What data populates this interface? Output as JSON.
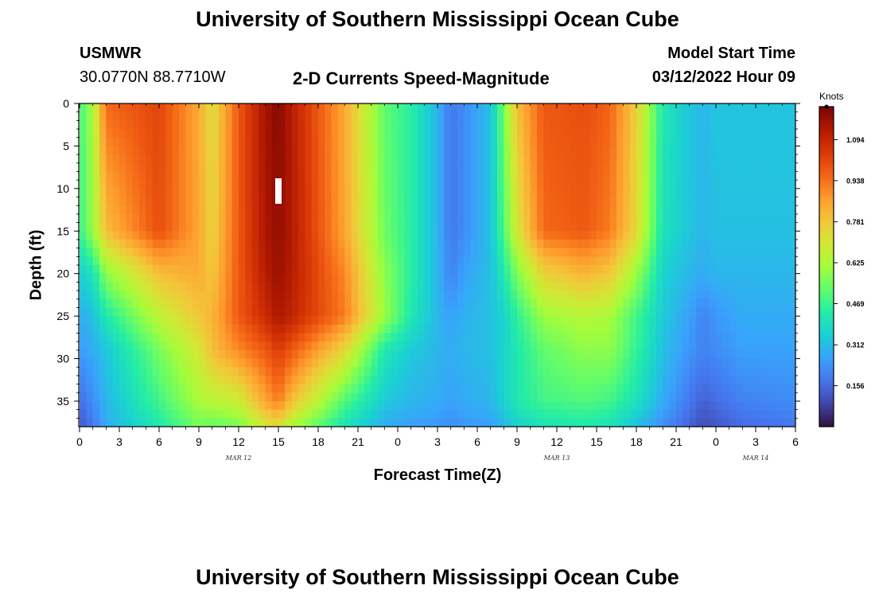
{
  "page": {
    "title": "University of Southern Mississippi Ocean Cube",
    "footer_title": "University of Southern Mississippi Ocean Cube",
    "station": "USMWR",
    "coords": "30.0770N  88.7710W",
    "model_start_label": "Model Start Time",
    "model_start_value": "03/12/2022 Hour 09"
  },
  "chart_data": {
    "type": "heatmap",
    "title": "2-D Currents Speed-Magnitude",
    "xlabel": "Forecast Time(Z)",
    "ylabel": "Depth (ft)",
    "colorbar_label": "Knots",
    "x_tick_labels": [
      "0",
      "3",
      "6",
      "9",
      "12",
      "15",
      "18",
      "21",
      "0",
      "3",
      "6",
      "9",
      "12",
      "15",
      "18",
      "21",
      "0",
      "3",
      "6"
    ],
    "x_range_hours": [
      0,
      54
    ],
    "date_labels": [
      {
        "text": "MAR 12",
        "hour": 12
      },
      {
        "text": "MAR 13",
        "hour": 36
      },
      {
        "text": "MAR 14",
        "hour": 51
      }
    ],
    "y_ticks": [
      "0",
      "5",
      "10",
      "15",
      "20",
      "25",
      "30",
      "35"
    ],
    "y_range": [
      0,
      38
    ],
    "y_inverted": true,
    "colorbar_ticks": [
      "1.094",
      "0.938",
      "0.781",
      "0.625",
      "0.469",
      "0.312",
      "0.156"
    ],
    "colorbar_range": [
      0,
      1.22
    ],
    "colormap": [
      "#30123b",
      "#4145ab",
      "#4675ed",
      "#39a2fc",
      "#1bcfd4",
      "#24eca6",
      "#61fc6c",
      "#a4fc3b",
      "#d1e834",
      "#f3c63a",
      "#fe9b2d",
      "#f36315",
      "#d93806",
      "#b11901",
      "#7a0402"
    ],
    "value_grid": {
      "depths": [
        0,
        15,
        20,
        25,
        29,
        35,
        38
      ],
      "hours": [
        0,
        1,
        2,
        6,
        9,
        10,
        12,
        14,
        15,
        16,
        20,
        23,
        25,
        27,
        28,
        29,
        31,
        32,
        33,
        35,
        38,
        40,
        42,
        44,
        46,
        47,
        48,
        50,
        54
      ],
      "values": [
        [
          0.48,
          0.62,
          0.95,
          1.02,
          0.84,
          0.72,
          0.98,
          1.15,
          1.2,
          1.12,
          0.84,
          0.52,
          0.44,
          0.3,
          0.18,
          0.22,
          0.32,
          0.55,
          0.8,
          0.98,
          1.0,
          0.96,
          0.76,
          0.42,
          0.33,
          0.3,
          0.33,
          0.33,
          0.33
        ],
        [
          0.46,
          0.6,
          0.8,
          1.0,
          0.85,
          0.75,
          0.98,
          1.14,
          1.18,
          1.13,
          0.85,
          0.54,
          0.44,
          0.3,
          0.18,
          0.22,
          0.32,
          0.5,
          0.7,
          0.95,
          0.98,
          0.92,
          0.74,
          0.4,
          0.33,
          0.3,
          0.32,
          0.32,
          0.32
        ],
        [
          0.35,
          0.4,
          0.58,
          0.8,
          0.84,
          0.78,
          0.98,
          1.12,
          1.17,
          1.12,
          0.9,
          0.58,
          0.44,
          0.3,
          0.2,
          0.26,
          0.32,
          0.42,
          0.56,
          0.75,
          0.82,
          0.78,
          0.6,
          0.36,
          0.3,
          0.28,
          0.3,
          0.3,
          0.3
        ],
        [
          0.28,
          0.32,
          0.42,
          0.66,
          0.78,
          0.82,
          0.98,
          1.08,
          1.14,
          1.1,
          0.92,
          0.6,
          0.42,
          0.3,
          0.26,
          0.29,
          0.32,
          0.36,
          0.45,
          0.6,
          0.64,
          0.62,
          0.48,
          0.34,
          0.26,
          0.2,
          0.24,
          0.28,
          0.28
        ],
        [
          0.25,
          0.28,
          0.33,
          0.55,
          0.7,
          0.8,
          0.9,
          0.98,
          1.04,
          0.98,
          0.74,
          0.42,
          0.34,
          0.3,
          0.28,
          0.3,
          0.32,
          0.36,
          0.42,
          0.52,
          0.58,
          0.58,
          0.46,
          0.32,
          0.24,
          0.2,
          0.22,
          0.26,
          0.26
        ],
        [
          0.16,
          0.22,
          0.3,
          0.48,
          0.62,
          0.65,
          0.68,
          0.85,
          0.92,
          0.8,
          0.5,
          0.34,
          0.3,
          0.28,
          0.26,
          0.28,
          0.3,
          0.36,
          0.42,
          0.48,
          0.5,
          0.48,
          0.4,
          0.28,
          0.18,
          0.14,
          0.16,
          0.2,
          0.22
        ],
        [
          0.12,
          0.18,
          0.28,
          0.42,
          0.55,
          0.52,
          0.55,
          0.7,
          0.72,
          0.62,
          0.4,
          0.28,
          0.26,
          0.24,
          0.22,
          0.24,
          0.26,
          0.3,
          0.36,
          0.4,
          0.42,
          0.4,
          0.32,
          0.22,
          0.14,
          0.1,
          0.12,
          0.16,
          0.18
        ]
      ]
    }
  }
}
